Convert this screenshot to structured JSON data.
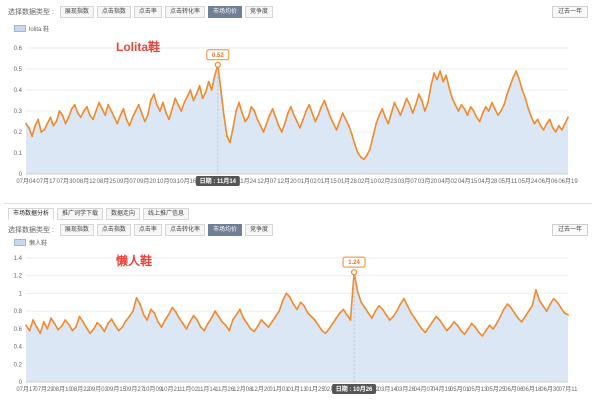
{
  "panel1": {
    "toolbar_label": "选择数据类型 :",
    "tabs": [
      {
        "label": "展现指数",
        "active": false
      },
      {
        "label": "点击指数",
        "active": false
      },
      {
        "label": "点击率",
        "active": false
      },
      {
        "label": "点击转化率",
        "active": false
      },
      {
        "label": "市场均价",
        "active": true
      },
      {
        "label": "竞争度",
        "active": false
      }
    ],
    "range_button": "过去一年",
    "legend": "lolita 鞋",
    "annotation": "Lolita鞋",
    "peak_label": "0.52",
    "tooltip": "日期 : 11月14"
  },
  "panel2": {
    "subtabs": [
      {
        "label": "市场数据分析",
        "active": true
      },
      {
        "label": "推广词学下载",
        "active": false
      },
      {
        "label": "数据走向",
        "active": false
      },
      {
        "label": "线上推广信息",
        "active": false
      }
    ],
    "toolbar_label": "选择数据类型 :",
    "tabs": [
      {
        "label": "展现指数",
        "active": false
      },
      {
        "label": "点击指数",
        "active": false
      },
      {
        "label": "点击率",
        "active": false
      },
      {
        "label": "点击转化率",
        "active": false
      },
      {
        "label": "市场均价",
        "active": true
      },
      {
        "label": "竞争度",
        "active": false
      }
    ],
    "range_button": "过去一年",
    "legend": "懒人鞋",
    "annotation": "懒人鞋",
    "peak_label": "1.24",
    "tooltip": "日期 : 10月26"
  },
  "colors": {
    "line": "#f08a2c",
    "area": "#dce7f5",
    "grid": "#eeeeee",
    "tooltip_bg": "#555555"
  },
  "chart_data": [
    {
      "type": "area",
      "title": "",
      "xlabel": "",
      "ylabel": "",
      "ylim": [
        0,
        0.6
      ],
      "yticks": [
        "0",
        "0.1",
        "0.2",
        "0.3",
        "0.4",
        "0.5",
        "0.6"
      ],
      "grid": true,
      "legend_position": "top-left",
      "x_tick_labels": [
        "07月04",
        "07月17",
        "07月30",
        "08月12",
        "08月25",
        "09月07",
        "09月20",
        "10月03",
        "10月16",
        "10月29",
        "11月11",
        "11月24",
        "12月07",
        "12月20",
        "01月02",
        "01月15",
        "01月28",
        "02月10",
        "02月23",
        "03月07",
        "03月20",
        "04月02",
        "04月15",
        "04月28",
        "05月11",
        "05月24",
        "06月06",
        "06月19"
      ],
      "series": [
        {
          "name": "lolita 鞋",
          "values": [
            0.24,
            0.22,
            0.18,
            0.23,
            0.26,
            0.2,
            0.21,
            0.24,
            0.27,
            0.23,
            0.25,
            0.3,
            0.28,
            0.24,
            0.27,
            0.31,
            0.33,
            0.29,
            0.27,
            0.3,
            0.32,
            0.28,
            0.26,
            0.3,
            0.34,
            0.31,
            0.28,
            0.33,
            0.3,
            0.27,
            0.24,
            0.28,
            0.31,
            0.26,
            0.23,
            0.27,
            0.3,
            0.33,
            0.29,
            0.25,
            0.28,
            0.35,
            0.38,
            0.33,
            0.3,
            0.34,
            0.29,
            0.26,
            0.31,
            0.36,
            0.33,
            0.3,
            0.34,
            0.37,
            0.4,
            0.35,
            0.38,
            0.42,
            0.36,
            0.39,
            0.44,
            0.4,
            0.47,
            0.52,
            0.4,
            0.28,
            0.18,
            0.15,
            0.22,
            0.3,
            0.34,
            0.29,
            0.25,
            0.27,
            0.32,
            0.3,
            0.26,
            0.23,
            0.2,
            0.24,
            0.28,
            0.31,
            0.27,
            0.23,
            0.2,
            0.24,
            0.29,
            0.32,
            0.28,
            0.25,
            0.22,
            0.26,
            0.3,
            0.33,
            0.29,
            0.25,
            0.28,
            0.32,
            0.35,
            0.31,
            0.27,
            0.24,
            0.21,
            0.25,
            0.29,
            0.26,
            0.23,
            0.19,
            0.14,
            0.1,
            0.08,
            0.07,
            0.09,
            0.12,
            0.18,
            0.24,
            0.28,
            0.31,
            0.27,
            0.24,
            0.29,
            0.34,
            0.31,
            0.28,
            0.32,
            0.36,
            0.33,
            0.29,
            0.33,
            0.38,
            0.35,
            0.3,
            0.34,
            0.42,
            0.48,
            0.45,
            0.49,
            0.44,
            0.47,
            0.41,
            0.36,
            0.33,
            0.3,
            0.33,
            0.31,
            0.28,
            0.32,
            0.3,
            0.27,
            0.25,
            0.29,
            0.32,
            0.3,
            0.34,
            0.31,
            0.28,
            0.3,
            0.33,
            0.38,
            0.42,
            0.46,
            0.49,
            0.45,
            0.4,
            0.36,
            0.31,
            0.27,
            0.24,
            0.26,
            0.23,
            0.21,
            0.24,
            0.26,
            0.22,
            0.2,
            0.23,
            0.21,
            0.24,
            0.27
          ]
        }
      ],
      "peak": {
        "index": 63,
        "value": 0.52
      },
      "tooltip_index": 63
    },
    {
      "type": "area",
      "title": "",
      "xlabel": "",
      "ylabel": "",
      "ylim": [
        0,
        1.4
      ],
      "yticks": [
        "0",
        "0.2",
        "0.4",
        "0.6",
        "0.8",
        "1",
        "1.2",
        "1.4"
      ],
      "grid": true,
      "legend_position": "top-left",
      "x_tick_labels": [
        "07月17",
        "07月29",
        "08月10",
        "08月22",
        "09月03",
        "09月15",
        "09月27",
        "10月09",
        "10月21",
        "11月02",
        "11月14",
        "11月26",
        "12月08",
        "12月20",
        "01月01",
        "01月13",
        "01月25",
        "02月06",
        "02月18",
        "03月02",
        "03月14",
        "03月26",
        "04月07",
        "04月19",
        "05月01",
        "05月13",
        "05月25",
        "06月06",
        "06月18",
        "06月30",
        "07月11"
      ],
      "series": [
        {
          "name": "懒人鞋",
          "values": [
            0.64,
            0.58,
            0.7,
            0.62,
            0.55,
            0.68,
            0.6,
            0.72,
            0.66,
            0.59,
            0.63,
            0.7,
            0.65,
            0.58,
            0.62,
            0.74,
            0.68,
            0.61,
            0.55,
            0.6,
            0.67,
            0.63,
            0.57,
            0.66,
            0.71,
            0.64,
            0.58,
            0.62,
            0.69,
            0.74,
            0.8,
            0.95,
            0.88,
            0.76,
            0.7,
            0.82,
            0.78,
            0.68,
            0.62,
            0.7,
            0.76,
            0.84,
            0.79,
            0.72,
            0.66,
            0.6,
            0.68,
            0.75,
            0.7,
            0.62,
            0.58,
            0.66,
            0.72,
            0.8,
            0.74,
            0.68,
            0.64,
            0.58,
            0.7,
            0.76,
            0.82,
            0.72,
            0.66,
            0.6,
            0.57,
            0.63,
            0.7,
            0.66,
            0.62,
            0.68,
            0.74,
            0.8,
            0.92,
            1.0,
            0.96,
            0.88,
            0.82,
            0.9,
            0.86,
            0.78,
            0.74,
            0.7,
            0.64,
            0.58,
            0.55,
            0.6,
            0.66,
            0.72,
            0.78,
            0.82,
            0.76,
            0.7,
            1.24,
            1.02,
            0.9,
            0.84,
            0.78,
            0.72,
            0.8,
            0.86,
            0.82,
            0.76,
            0.7,
            0.74,
            0.8,
            0.88,
            0.94,
            0.86,
            0.78,
            0.72,
            0.66,
            0.6,
            0.56,
            0.62,
            0.68,
            0.74,
            0.7,
            0.64,
            0.58,
            0.62,
            0.68,
            0.64,
            0.58,
            0.54,
            0.6,
            0.66,
            0.62,
            0.56,
            0.52,
            0.58,
            0.64,
            0.6,
            0.66,
            0.74,
            0.82,
            0.88,
            0.84,
            0.78,
            0.72,
            0.68,
            0.74,
            0.8,
            0.86,
            1.04,
            0.92,
            0.86,
            0.8,
            0.88,
            0.94,
            0.9,
            0.84,
            0.78,
            0.76
          ]
        }
      ],
      "peak": {
        "index": 92,
        "value": 1.24
      },
      "tooltip_index": 92
    }
  ]
}
